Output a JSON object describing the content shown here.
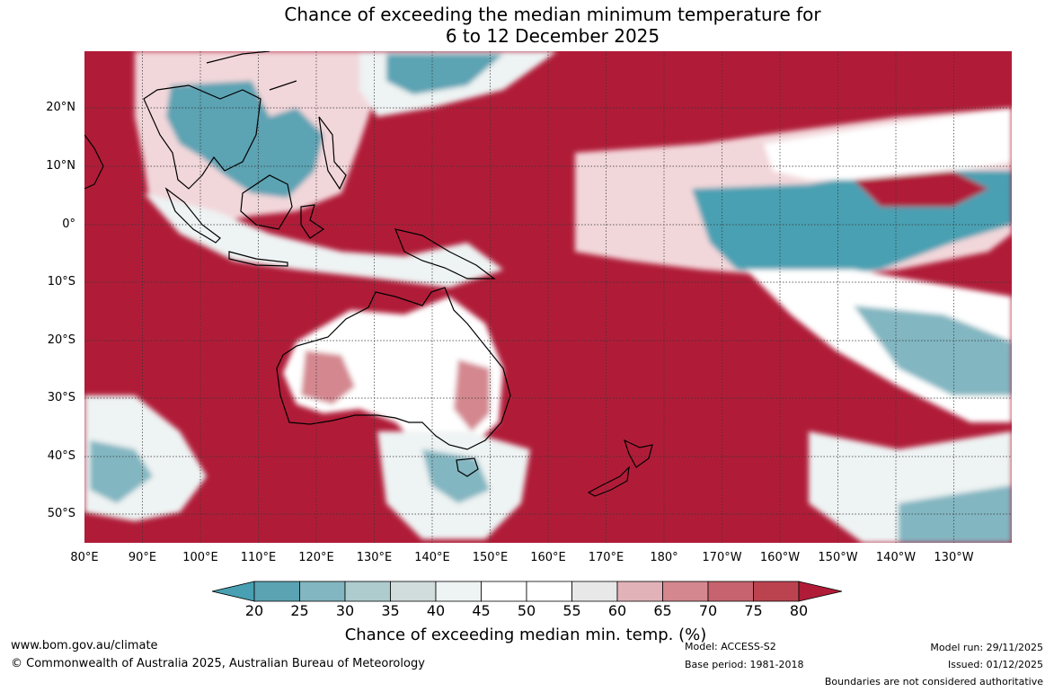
{
  "title": {
    "line1": "Chance of exceeding the median minimum temperature for",
    "line2": "6 to 12 December 2025"
  },
  "map": {
    "lat_labels": [
      "20°N",
      "10°N",
      "0°",
      "10°S",
      "20°S",
      "30°S",
      "40°S",
      "50°S"
    ],
    "lon_labels": [
      "80°E",
      "90°E",
      "100°E",
      "110°E",
      "120°E",
      "130°E",
      "140°E",
      "150°E",
      "160°E",
      "170°E",
      "180°",
      "170°W",
      "160°W",
      "150°W",
      "140°W",
      "130°W"
    ],
    "lat_range": [
      -55,
      30
    ],
    "lon_range": [
      80,
      240
    ]
  },
  "colorbar": {
    "ticks": [
      "20",
      "25",
      "30",
      "35",
      "40",
      "45",
      "50",
      "55",
      "60",
      "65",
      "70",
      "75",
      "80"
    ],
    "colors": [
      "#5ba3b3",
      "#82b6c1",
      "#aecbce",
      "#d1dcdc",
      "#eef3f3",
      "#ffffff",
      "#ffffff",
      "#e8e8e8",
      "#e1b2b8",
      "#d4878f",
      "#c7636e",
      "#bb4350"
    ],
    "under_color": "#48a0b2",
    "over_color": "#b01c38",
    "label": "Chance of exceeding median min. temp. (%)"
  },
  "footer": {
    "url": "www.bom.gov.au/climate",
    "copyright": "© Commonwealth of Australia 2025, Australian Bureau of Meteorology",
    "model": "Model: ACCESS-S2",
    "base_period": "Base period: 1981-2018",
    "model_run": "Model run: 29/11/2025",
    "issued": "Issued: 01/12/2025",
    "boundaries": "Boundaries are not considered authoritative"
  }
}
